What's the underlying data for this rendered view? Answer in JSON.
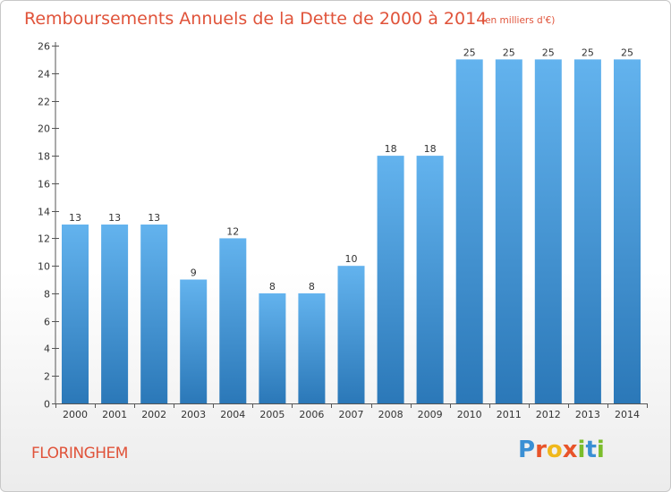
{
  "chart_data": {
    "type": "bar",
    "title": "Remboursements Annuels de la Dette de 2000 à 2014",
    "subtitle": "(en milliers d'€)",
    "categories": [
      "2000",
      "2001",
      "2002",
      "2003",
      "2004",
      "2005",
      "2006",
      "2007",
      "2008",
      "2009",
      "2010",
      "2011",
      "2012",
      "2013",
      "2014"
    ],
    "values": [
      13,
      13,
      13,
      9,
      12,
      8,
      8,
      10,
      18,
      18,
      25,
      25,
      25,
      25,
      25
    ],
    "ylim": [
      0,
      26
    ],
    "yticks": [
      0,
      2,
      4,
      6,
      8,
      10,
      12,
      14,
      16,
      18,
      20,
      22,
      24,
      26
    ],
    "xlabel": "",
    "ylabel": "",
    "grid": false,
    "bar_color_top": "#63b3ee",
    "bar_color_bottom": "#2b78b8"
  },
  "footer": {
    "place": "FLORINGHEM",
    "logo_letters": [
      "P",
      "r",
      "o",
      "x",
      "i",
      "t",
      "i"
    ],
    "logo_colors": [
      "#3a8fd4",
      "#e8542a",
      "#f0b81c",
      "#e8542a",
      "#7bbd2c",
      "#3a8fd4",
      "#7bbd2c"
    ]
  }
}
